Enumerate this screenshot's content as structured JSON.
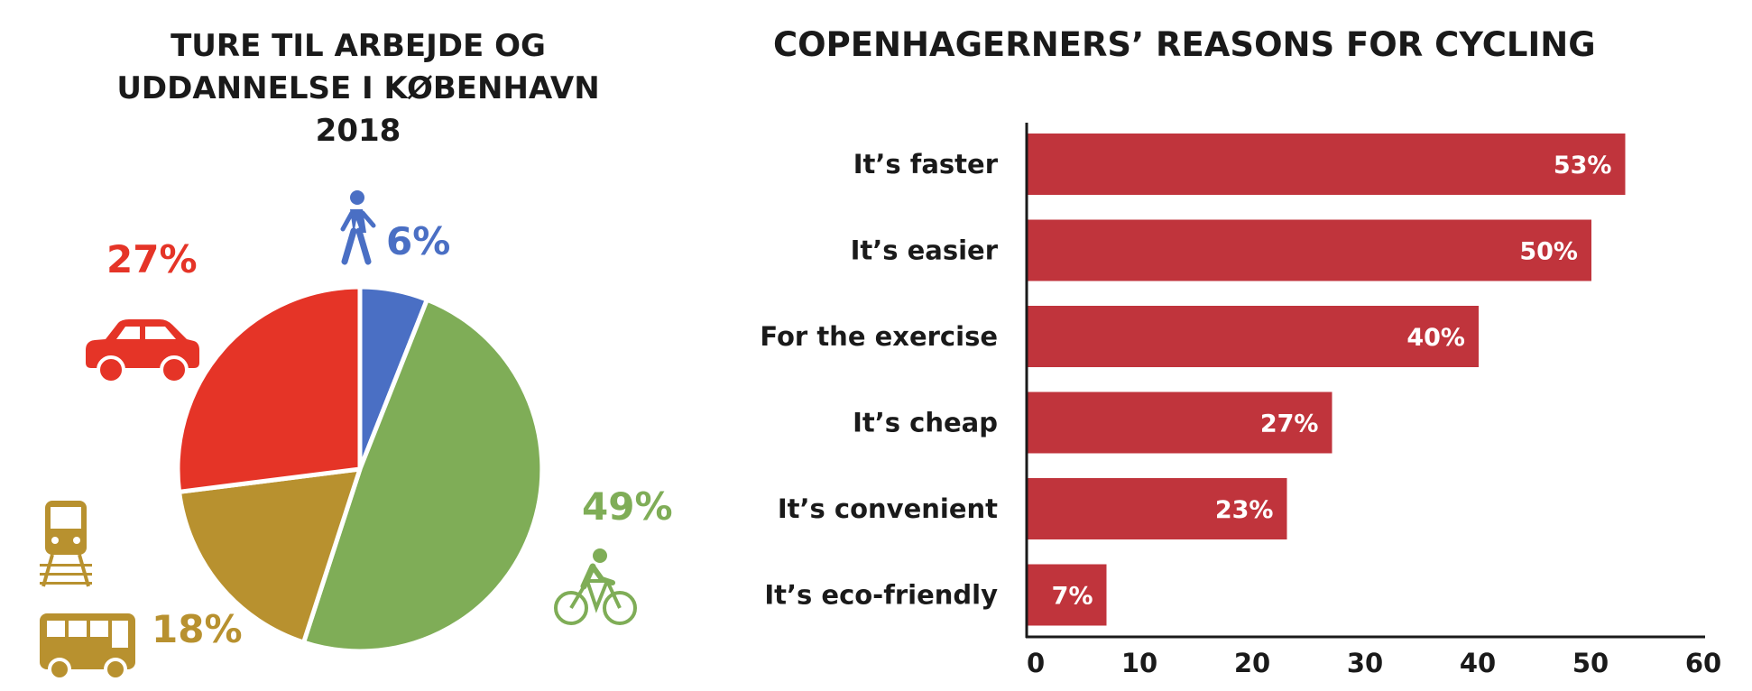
{
  "chart_data": [
    {
      "type": "pie",
      "title_lines": [
        "TURE TIL ARBEJDE OG",
        "UDDANNELSE I KØBENHAVN",
        "2018"
      ],
      "slices": [
        {
          "name": "walk",
          "icon": "walking-person-icon",
          "value": 6,
          "label": "6%",
          "color": "#4a6fc4"
        },
        {
          "name": "bicycle",
          "icon": "bicycle-icon",
          "value": 49,
          "label": "49%",
          "color": "#7fad57"
        },
        {
          "name": "public-transport",
          "icon": "train-bus-icon",
          "value": 18,
          "label": "18%",
          "color": "#b8912f"
        },
        {
          "name": "car",
          "icon": "car-icon",
          "value": 27,
          "label": "27%",
          "color": "#e53427"
        }
      ]
    },
    {
      "type": "bar",
      "orientation": "horizontal",
      "title": "COPENHAGERNERS’ REASONS FOR CYCLING",
      "categories": [
        "It’s faster",
        "It’s easier",
        "For the exercise",
        "It’s cheap",
        "It’s convenient",
        "It’s eco-friendly"
      ],
      "values": [
        53,
        50,
        40,
        27,
        23,
        7
      ],
      "value_labels": [
        "53%",
        "50%",
        "40%",
        "27%",
        "23%",
        "7%"
      ],
      "xlim": [
        0,
        60
      ],
      "ticks": [
        0,
        10,
        20,
        30,
        40,
        50,
        60
      ],
      "bar_color": "#c0343c",
      "grid": false
    }
  ]
}
